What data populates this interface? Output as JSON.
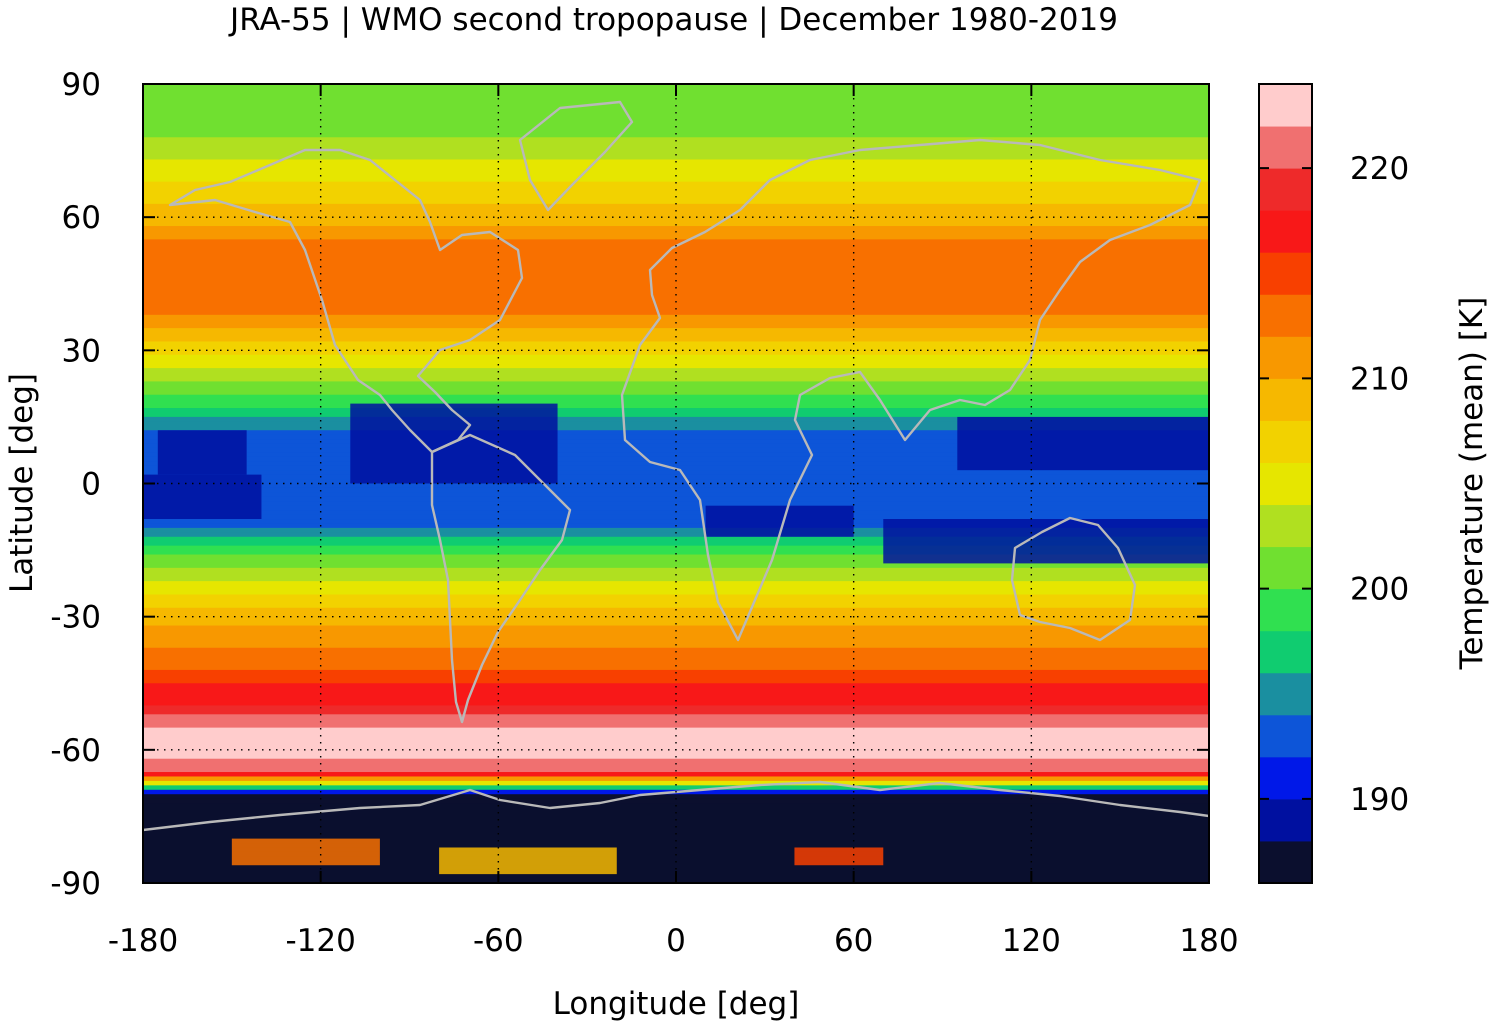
{
  "chart_data": {
    "type": "heatmap",
    "title": "JRA-55 | WMO second tropopause | December 1980-2019",
    "xlabel": "Longitude [deg]",
    "ylabel": "Latitude [deg]",
    "colorbar_label": "Temperature (mean) [K]",
    "xlim": [
      -180,
      180
    ],
    "ylim": [
      -90,
      90
    ],
    "x_ticks": [
      -180,
      -120,
      -60,
      0,
      60,
      120,
      180
    ],
    "y_ticks": [
      90,
      60,
      30,
      0,
      -30,
      -60,
      -90
    ],
    "x_tick_labels": [
      "-180",
      "-120",
      "-60",
      "0",
      "60",
      "120",
      "180"
    ],
    "y_tick_labels": [
      "90",
      "60",
      "30",
      "0",
      "-30",
      "-60",
      "-90"
    ],
    "grid": true,
    "colorbar": {
      "range": [
        186,
        224
      ],
      "ticks": [
        190,
        200,
        210,
        220
      ],
      "tick_labels": [
        "190",
        "200",
        "210",
        "220"
      ],
      "colors": [
        "#0b0f2e",
        "#0010a0",
        "#0018e8",
        "#0d55d8",
        "#1a8fa0",
        "#10cc70",
        "#30e050",
        "#70e030",
        "#b0e020",
        "#e6e600",
        "#f2d200",
        "#f6b800",
        "#f89800",
        "#f87000",
        "#f84000",
        "#f81818",
        "#ee2a2a",
        "#f07070",
        "#ffcccc"
      ],
      "placement": "right"
    },
    "approx_zonal_mean_temperature": {
      "latitudes": [
        -90,
        -80,
        -70,
        -65,
        -60,
        -55,
        -50,
        -45,
        -40,
        -35,
        -30,
        -25,
        -20,
        -15,
        -10,
        -5,
        0,
        5,
        10,
        15,
        20,
        25,
        30,
        35,
        40,
        45,
        50,
        55,
        60,
        65,
        70,
        75,
        80,
        85,
        90
      ],
      "values": [
        187,
        187,
        188,
        220,
        223,
        222,
        218,
        216,
        213,
        211,
        209,
        206,
        203,
        199,
        194,
        192,
        193,
        193,
        193,
        196,
        200,
        203,
        207,
        210,
        213,
        214,
        213,
        212,
        209,
        207,
        205,
        203,
        201,
        200,
        200
      ]
    },
    "map_overlay": "coastlines"
  }
}
